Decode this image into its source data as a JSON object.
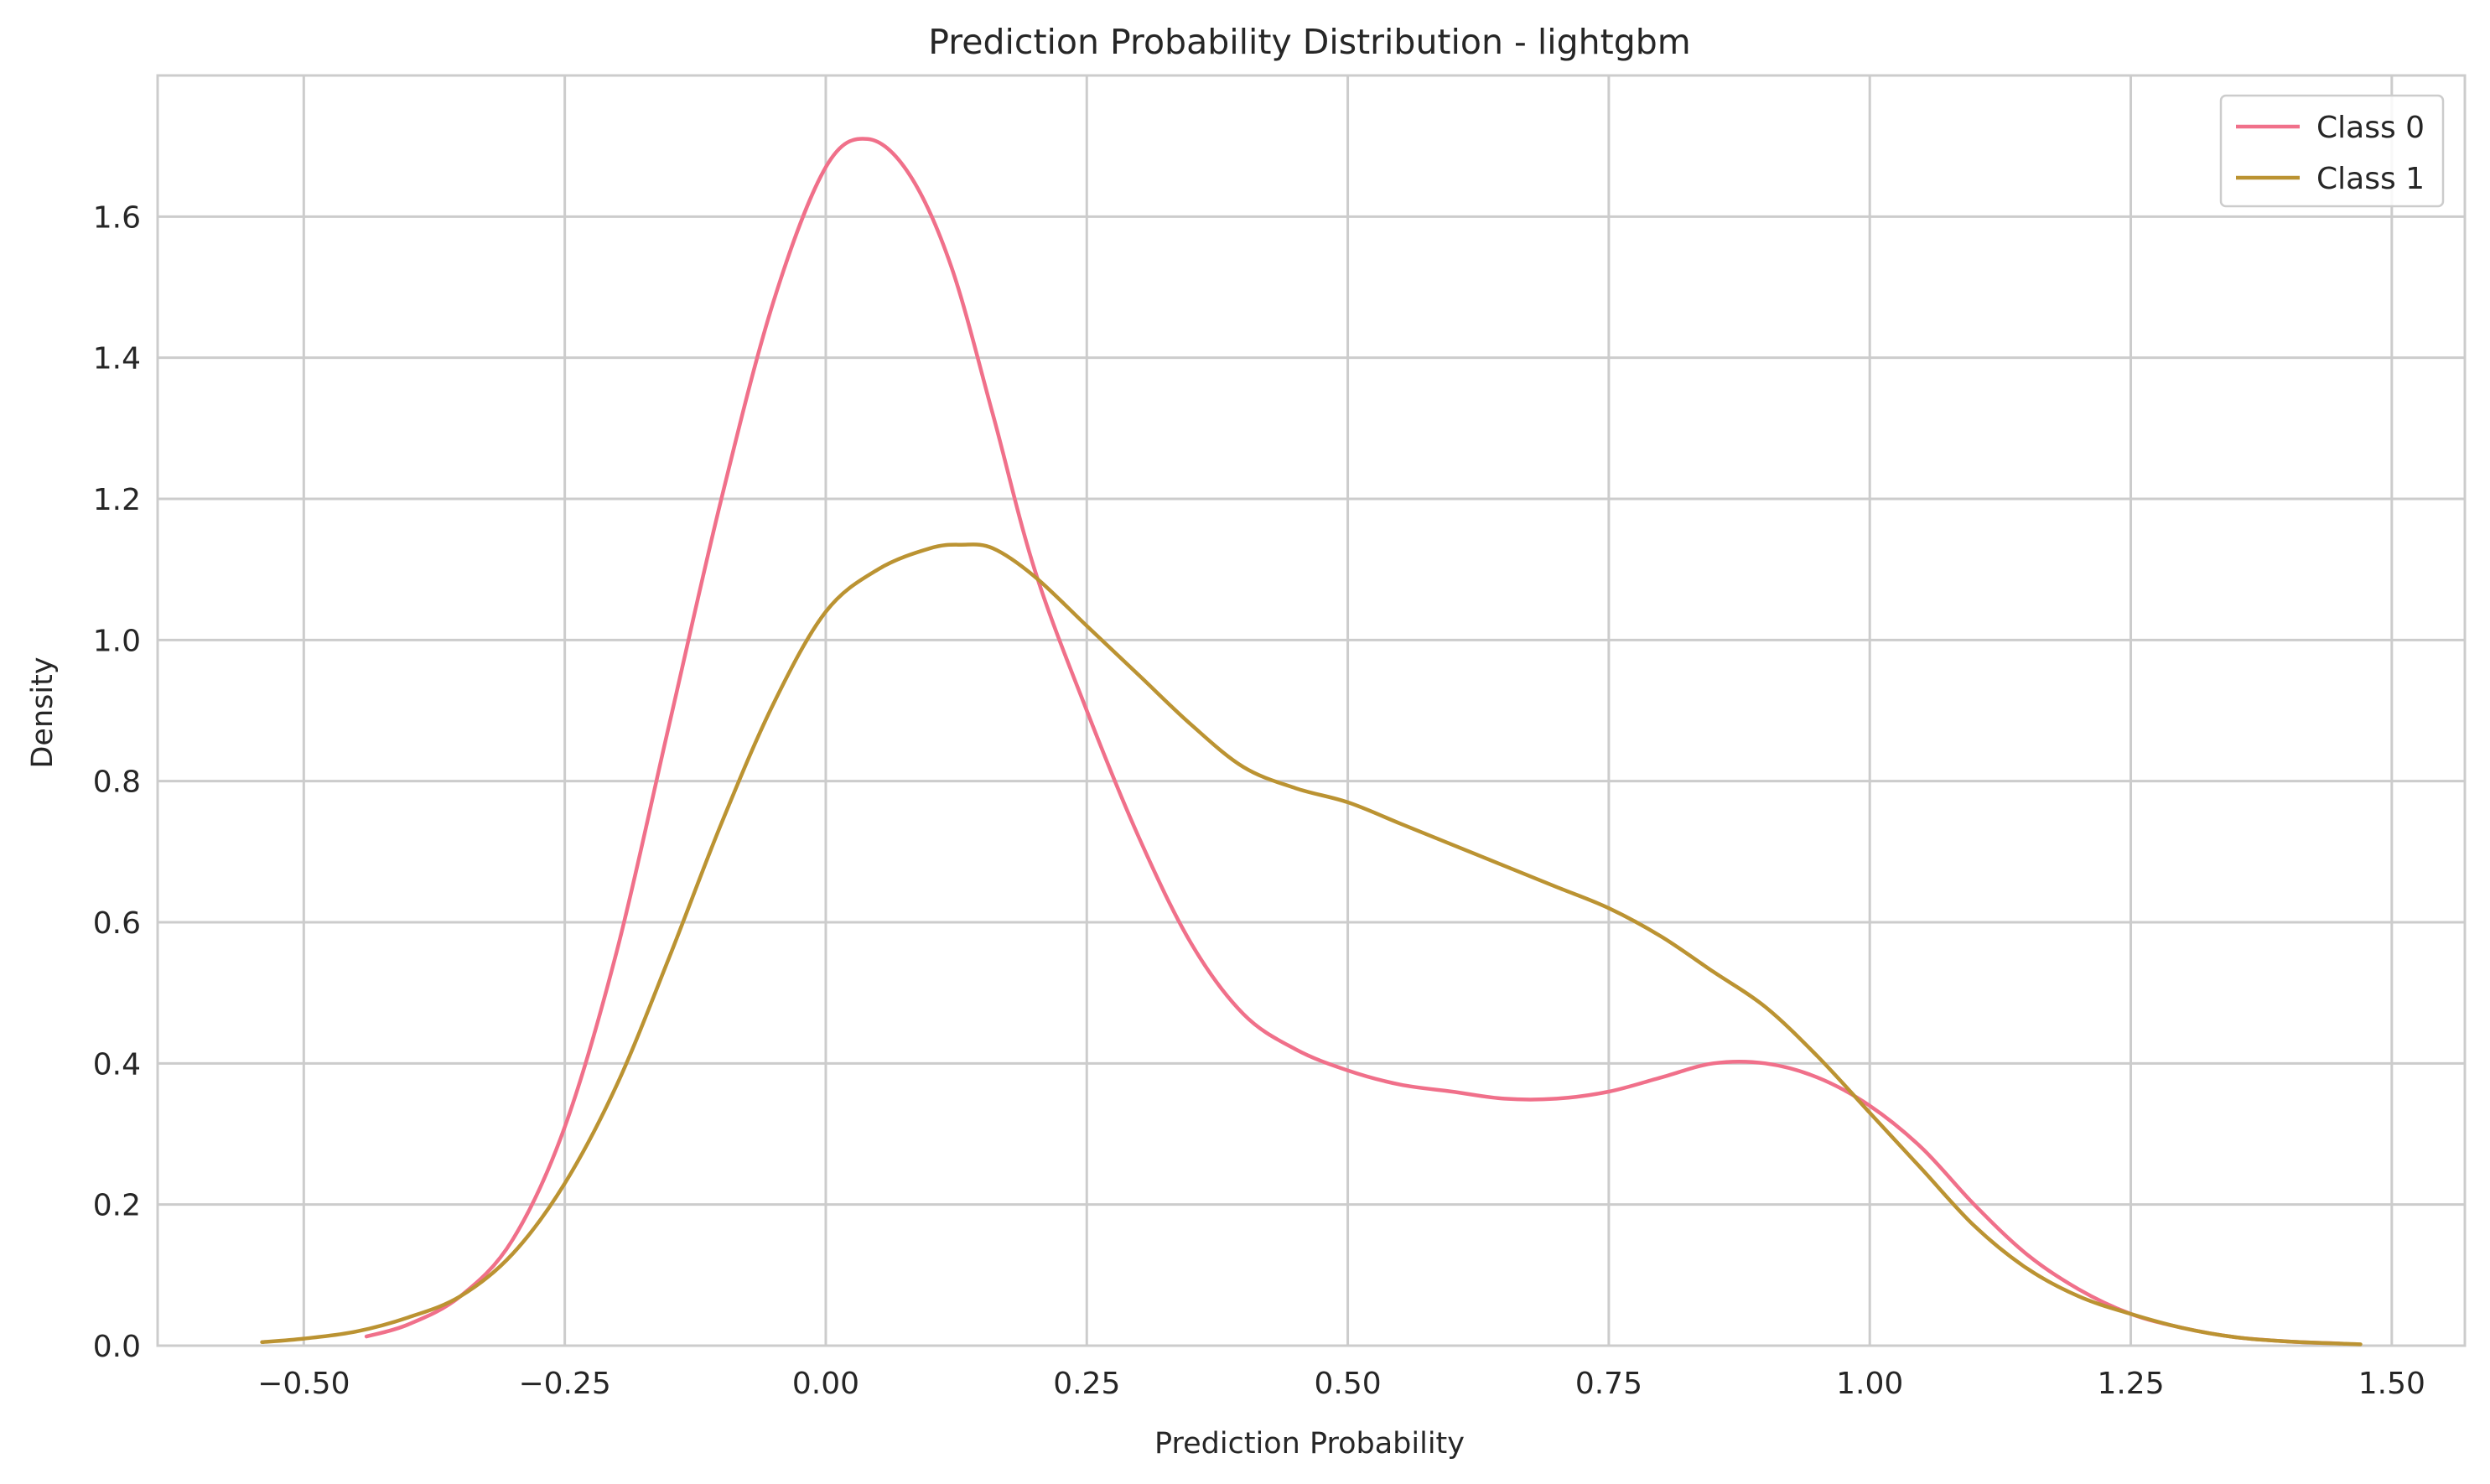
{
  "chart_data": {
    "type": "line",
    "title": "Prediction Probability Distribution - lightgbm",
    "xlabel": "Prediction Probability",
    "ylabel": "Density",
    "xlim": [
      -0.64,
      1.57
    ],
    "ylim": [
      0,
      1.8
    ],
    "x_ticks": [
      -0.5,
      -0.25,
      0.0,
      0.25,
      0.5,
      0.75,
      1.0,
      1.25,
      1.5
    ],
    "x_tick_labels": [
      "−0.50",
      "−0.25",
      "0.00",
      "0.25",
      "0.50",
      "0.75",
      "1.00",
      "1.25",
      "1.50"
    ],
    "y_ticks": [
      0.0,
      0.2,
      0.4,
      0.6,
      0.8,
      1.0,
      1.2,
      1.4,
      1.6
    ],
    "y_tick_labels": [
      "0.0",
      "0.2",
      "0.4",
      "0.6",
      "0.8",
      "1.0",
      "1.2",
      "1.4",
      "1.6"
    ],
    "grid": true,
    "legend_position": "top-right",
    "series": [
      {
        "name": "Class 0",
        "color": "#f0708a",
        "x": [
          -0.44,
          -0.4,
          -0.35,
          -0.3,
          -0.25,
          -0.2,
          -0.15,
          -0.1,
          -0.05,
          0.0,
          0.04,
          0.08,
          0.12,
          0.16,
          0.2,
          0.25,
          0.3,
          0.35,
          0.4,
          0.45,
          0.5,
          0.55,
          0.6,
          0.65,
          0.7,
          0.75,
          0.8,
          0.85,
          0.9,
          0.95,
          1.0,
          1.05,
          1.1,
          1.15,
          1.2,
          1.25,
          1.3,
          1.35,
          1.4,
          1.45
        ],
        "y": [
          0.013,
          0.03,
          0.07,
          0.15,
          0.31,
          0.56,
          0.88,
          1.2,
          1.48,
          1.67,
          1.71,
          1.66,
          1.53,
          1.32,
          1.1,
          0.9,
          0.72,
          0.57,
          0.47,
          0.42,
          0.39,
          0.37,
          0.36,
          0.35,
          0.35,
          0.36,
          0.38,
          0.4,
          0.4,
          0.38,
          0.34,
          0.28,
          0.2,
          0.13,
          0.08,
          0.045,
          0.025,
          0.012,
          0.006,
          0.003
        ]
      },
      {
        "name": "Class 1",
        "color": "#bb9332",
        "x": [
          -0.54,
          -0.5,
          -0.45,
          -0.4,
          -0.35,
          -0.3,
          -0.25,
          -0.2,
          -0.15,
          -0.1,
          -0.05,
          0.0,
          0.05,
          0.1,
          0.13,
          0.16,
          0.2,
          0.25,
          0.3,
          0.35,
          0.4,
          0.45,
          0.5,
          0.55,
          0.6,
          0.65,
          0.7,
          0.75,
          0.8,
          0.85,
          0.9,
          0.95,
          1.0,
          1.05,
          1.1,
          1.15,
          1.2,
          1.25,
          1.3,
          1.35,
          1.4,
          1.47
        ],
        "y": [
          0.005,
          0.01,
          0.02,
          0.04,
          0.07,
          0.13,
          0.23,
          0.37,
          0.55,
          0.74,
          0.91,
          1.04,
          1.1,
          1.13,
          1.135,
          1.13,
          1.09,
          1.02,
          0.95,
          0.88,
          0.82,
          0.79,
          0.77,
          0.74,
          0.71,
          0.68,
          0.65,
          0.62,
          0.58,
          0.53,
          0.48,
          0.41,
          0.33,
          0.25,
          0.17,
          0.11,
          0.07,
          0.045,
          0.025,
          0.012,
          0.006,
          0.002
        ]
      }
    ]
  },
  "colors": {
    "background": "#ffffff",
    "grid": "#cccccc",
    "axes_edge": "#cccccc",
    "text": "#262626"
  }
}
